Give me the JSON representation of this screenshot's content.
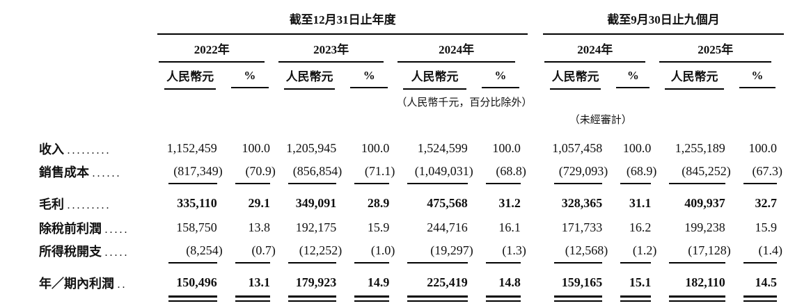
{
  "page": {
    "background_color": "#ffffff",
    "text_color": "#111111",
    "rule_color": "#000000"
  },
  "table": {
    "period_annual": "截至12月31日止年度",
    "period_interim": "截至9月30日止九個月",
    "years": [
      "2022年",
      "2023年",
      "2024年",
      "2024年",
      "2025年"
    ],
    "unit_currency": "人民幣元",
    "unit_percent": "%",
    "note_units": "（人民幣千元，百分比除外）",
    "note_unaudited": "（未經審計）",
    "rows": [
      {
        "label": "收入",
        "leader": ".........",
        "bold": false,
        "rule_below": false,
        "double_rule_below": false,
        "values": [
          "1,152,459",
          "100.0",
          "1,205,945",
          "100.0",
          "1,524,599",
          "100.0",
          "1,057,458",
          "100.0",
          "1,255,189",
          "100.0"
        ]
      },
      {
        "label": "銷售成本",
        "leader": "......",
        "bold": false,
        "rule_below": true,
        "double_rule_below": false,
        "values": [
          "(817,349)",
          "(70.9)",
          "(856,854)",
          "(71.1)",
          "(1,049,031)",
          "(68.8)",
          "(729,093)",
          "(68.9)",
          "(845,252)",
          "(67.3)"
        ]
      },
      {
        "label": "毛利",
        "leader": ".........",
        "bold": true,
        "rule_below": false,
        "double_rule_below": false,
        "values": [
          "335,110",
          "29.1",
          "349,091",
          "28.9",
          "475,568",
          "31.2",
          "328,365",
          "31.1",
          "409,937",
          "32.7"
        ]
      },
      {
        "label": "除稅前利潤",
        "leader": ".....",
        "bold": false,
        "rule_below": false,
        "double_rule_below": false,
        "values": [
          "158,750",
          "13.8",
          "192,175",
          "15.9",
          "244,716",
          "16.1",
          "171,733",
          "16.2",
          "199,238",
          "15.9"
        ]
      },
      {
        "label": "所得稅開支",
        "leader": ".....",
        "bold": false,
        "rule_below": true,
        "double_rule_below": false,
        "values": [
          "(8,254)",
          "(0.7)",
          "(12,252)",
          "(1.0)",
          "(19,297)",
          "(1.3)",
          "(12,568)",
          "(1.2)",
          "(17,128)",
          "(1.4)"
        ]
      },
      {
        "label": "年／期內利潤",
        "leader": "..",
        "bold": true,
        "rule_below": false,
        "double_rule_below": true,
        "values": [
          "150,496",
          "13.1",
          "179,923",
          "14.9",
          "225,419",
          "14.8",
          "159,165",
          "15.1",
          "182,110",
          "14.5"
        ]
      }
    ]
  }
}
